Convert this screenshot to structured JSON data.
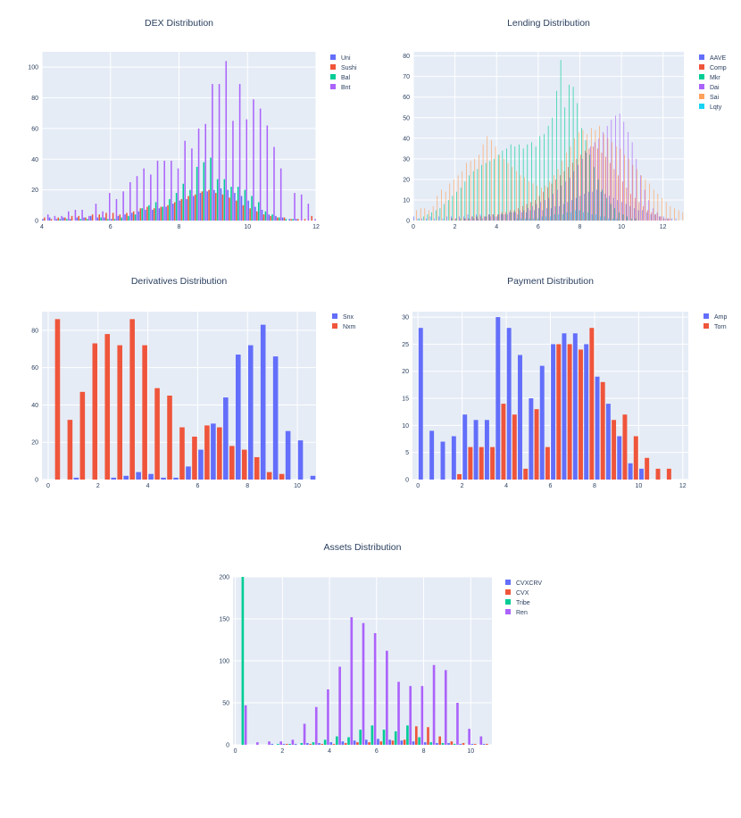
{
  "colors": {
    "plot_bg": "#e5ecf6",
    "grid": "#ffffff",
    "palette": [
      "#636efa",
      "#ef553b",
      "#00cc96",
      "#ab63fa",
      "#ffa15a",
      "#19d3f3"
    ]
  },
  "chart_data": [
    {
      "id": "dex",
      "type": "histogram",
      "title": "DEX Distribution",
      "xlabel": "",
      "ylabel": "",
      "xlim": [
        4,
        12
      ],
      "ylim": [
        0,
        110
      ],
      "xticks": [
        4,
        6,
        8,
        10,
        12
      ],
      "yticks": [
        0,
        20,
        40,
        60,
        80,
        100
      ],
      "grid": true,
      "legend": "top-right",
      "barmode": "group",
      "bins": [
        4.0,
        4.2,
        4.4,
        4.6,
        4.8,
        5.0,
        5.2,
        5.4,
        5.6,
        5.8,
        6.0,
        6.2,
        6.4,
        6.6,
        6.8,
        7.0,
        7.2,
        7.4,
        7.6,
        7.8,
        8.0,
        8.2,
        8.4,
        8.6,
        8.8,
        9.0,
        9.2,
        9.4,
        9.6,
        9.8,
        10.0,
        10.2,
        10.4,
        10.6,
        10.8,
        11.0,
        11.2,
        11.4,
        11.6,
        11.8
      ],
      "bin_width": 0.2,
      "series": [
        {
          "name": "Uni",
          "values": [
            1,
            2,
            1,
            2,
            1,
            2,
            2,
            3,
            2,
            2,
            1,
            3,
            4,
            5,
            6,
            7,
            7,
            8,
            9,
            11,
            13,
            14,
            16,
            18,
            19,
            20,
            21,
            20,
            18,
            16,
            13,
            9,
            7,
            4,
            3,
            2,
            1,
            1,
            0,
            0
          ]
        },
        {
          "name": "Sushi",
          "values": [
            2,
            1,
            2,
            2,
            3,
            3,
            2,
            4,
            4,
            5,
            5,
            4,
            5,
            6,
            8,
            9,
            8,
            9,
            10,
            12,
            14,
            16,
            17,
            19,
            20,
            18,
            17,
            15,
            13,
            10,
            8,
            6,
            4,
            3,
            2,
            2,
            1,
            1,
            1,
            3
          ]
        },
        {
          "name": "Bal",
          "values": [
            0,
            0,
            1,
            1,
            0,
            1,
            1,
            0,
            2,
            1,
            1,
            2,
            3,
            4,
            8,
            10,
            12,
            9,
            14,
            18,
            24,
            20,
            35,
            38,
            41,
            27,
            27,
            22,
            22,
            20,
            16,
            12,
            6,
            4,
            2,
            1,
            1,
            0,
            0,
            0
          ]
        },
        {
          "name": "Bnt",
          "values": [
            4,
            3,
            3,
            6,
            7,
            7,
            3,
            11,
            6,
            18,
            14,
            19,
            25,
            29,
            34,
            30,
            39,
            39,
            39,
            34,
            52,
            47,
            60,
            63,
            89,
            89,
            104,
            65,
            89,
            66,
            79,
            73,
            62,
            48,
            34,
            0,
            18,
            17,
            11,
            1
          ]
        }
      ]
    },
    {
      "id": "lending",
      "type": "histogram",
      "title": "Lending Distribution",
      "xlabel": "",
      "ylabel": "",
      "xlim": [
        0,
        13
      ],
      "ylim": [
        0,
        82
      ],
      "xticks": [
        0,
        2,
        4,
        6,
        8,
        10,
        12
      ],
      "yticks": [
        0,
        10,
        20,
        30,
        40,
        50,
        60,
        70,
        80
      ],
      "grid": true,
      "legend": "top-right",
      "barmode": "group",
      "bins": [
        0.0,
        0.2,
        0.4,
        0.6,
        0.8,
        1.0,
        1.2,
        1.4,
        1.6,
        1.8,
        2.0,
        2.2,
        2.4,
        2.6,
        2.8,
        3.0,
        3.2,
        3.4,
        3.6,
        3.8,
        4.0,
        4.2,
        4.4,
        4.6,
        4.8,
        5.0,
        5.2,
        5.4,
        5.6,
        5.8,
        6.0,
        6.2,
        6.4,
        6.6,
        6.8,
        7.0,
        7.2,
        7.4,
        7.6,
        7.8,
        8.0,
        8.2,
        8.4,
        8.6,
        8.8,
        9.0,
        9.2,
        9.4,
        9.6,
        9.8,
        10.0,
        10.2,
        10.4,
        10.6,
        10.8,
        11.0,
        11.2,
        11.4,
        11.6,
        11.8,
        12.0,
        12.2,
        12.4,
        12.6,
        12.8
      ],
      "bin_width": 0.2,
      "series": [
        {
          "name": "AAVE",
          "values": [
            2,
            1,
            1,
            1,
            2,
            1,
            2,
            1,
            2,
            2,
            1,
            2,
            2,
            3,
            2,
            3,
            3,
            2,
            3,
            3,
            2,
            3,
            3,
            4,
            4,
            3,
            4,
            4,
            5,
            5,
            6,
            5,
            6,
            6,
            7,
            7,
            8,
            9,
            10,
            11,
            12,
            13,
            14,
            14,
            15,
            14,
            13,
            12,
            11,
            10,
            9,
            8,
            7,
            6,
            5,
            5,
            4,
            3,
            3,
            2,
            2,
            1,
            1,
            1,
            0
          ]
        },
        {
          "name": "Comp",
          "values": [
            0,
            0,
            0,
            0,
            0,
            0,
            0,
            0,
            0,
            1,
            1,
            1,
            1,
            1,
            2,
            2,
            2,
            2,
            3,
            3,
            3,
            4,
            4,
            5,
            5,
            6,
            7,
            8,
            9,
            10,
            12,
            14,
            16,
            18,
            20,
            22,
            24,
            26,
            28,
            30,
            32,
            34,
            35,
            36,
            35,
            33,
            31,
            28,
            25,
            22,
            19,
            16,
            13,
            11,
            9,
            7,
            5,
            4,
            3,
            2,
            1,
            1,
            0,
            0,
            0
          ]
        },
        {
          "name": "Mkr",
          "values": [
            0,
            1,
            2,
            3,
            4,
            5,
            6,
            8,
            10,
            12,
            14,
            16,
            19,
            22,
            24,
            25,
            27,
            28,
            29,
            30,
            32,
            34,
            35,
            37,
            36,
            37,
            35,
            37,
            38,
            36,
            41,
            42,
            46,
            50,
            63,
            78,
            55,
            66,
            65,
            57,
            45,
            39,
            32,
            26,
            20,
            15,
            11,
            8,
            6,
            4,
            3,
            2,
            1,
            1,
            0,
            0,
            0,
            0,
            0,
            0,
            0,
            0,
            0,
            0,
            0
          ]
        },
        {
          "name": "Dai",
          "values": [
            0,
            0,
            0,
            0,
            0,
            0,
            0,
            0,
            0,
            0,
            0,
            0,
            1,
            1,
            1,
            1,
            1,
            2,
            2,
            2,
            3,
            3,
            3,
            4,
            4,
            5,
            5,
            6,
            7,
            8,
            9,
            10,
            11,
            13,
            15,
            17,
            19,
            21,
            24,
            27,
            30,
            33,
            36,
            38,
            40,
            43,
            46,
            49,
            51,
            52,
            48,
            43,
            38,
            30,
            22,
            15,
            10,
            6,
            4,
            2,
            1,
            1,
            0,
            0,
            0
          ]
        },
        {
          "name": "Sai",
          "values": [
            5,
            6,
            6,
            5,
            7,
            12,
            15,
            14,
            18,
            20,
            22,
            24,
            28,
            29,
            30,
            32,
            37,
            41,
            39,
            36,
            32,
            30,
            28,
            26,
            24,
            22,
            21,
            19,
            18,
            17,
            16,
            17,
            19,
            22,
            25,
            29,
            33,
            36,
            40,
            43,
            44,
            42,
            45,
            44,
            46,
            42,
            40,
            38,
            36,
            35,
            32,
            30,
            27,
            25,
            22,
            20,
            18,
            15,
            13,
            11,
            9,
            7,
            6,
            5,
            4
          ]
        },
        {
          "name": "Lqty",
          "values": [
            0,
            0,
            0,
            0,
            0,
            0,
            0,
            0,
            0,
            0,
            0,
            0,
            0,
            0,
            0,
            0,
            0,
            0,
            0,
            0,
            0,
            0,
            0,
            0,
            1,
            1,
            1,
            1,
            1,
            1,
            2,
            2,
            2,
            3,
            3,
            3,
            4,
            4,
            5,
            5,
            4,
            4,
            3,
            3,
            2,
            2,
            1,
            1,
            1,
            0,
            0,
            0,
            0,
            0,
            0,
            0,
            0,
            0,
            0,
            0,
            0,
            0,
            0,
            0,
            0
          ]
        }
      ]
    },
    {
      "id": "derivatives",
      "type": "histogram",
      "title": "Derivatives Distribution",
      "xlabel": "",
      "ylabel": "",
      "xlim": [
        -0.25,
        10.75
      ],
      "ylim": [
        0,
        90
      ],
      "xticks": [
        0,
        2,
        4,
        6,
        8,
        10
      ],
      "yticks": [
        0,
        20,
        40,
        60,
        80
      ],
      "grid": true,
      "legend": "top-right",
      "barmode": "group",
      "bins": [
        0.0,
        0.5,
        1.0,
        1.5,
        2.0,
        2.5,
        3.0,
        3.5,
        4.0,
        4.5,
        5.0,
        5.5,
        6.0,
        6.5,
        7.0,
        7.5,
        8.0,
        8.5,
        9.0,
        9.5,
        10.0,
        10.5
      ],
      "bin_width": 0.5,
      "series": [
        {
          "name": "Snx",
          "values": [
            0,
            0,
            1,
            0,
            0,
            1,
            2,
            4,
            3,
            1,
            1,
            7,
            16,
            30,
            44,
            67,
            72,
            83,
            66,
            26,
            21,
            2
          ]
        },
        {
          "name": "Nxm",
          "values": [
            86,
            32,
            47,
            73,
            78,
            72,
            86,
            72,
            49,
            45,
            28,
            23,
            29,
            28,
            18,
            16,
            12,
            4,
            3,
            0,
            0,
            0
          ]
        }
      ]
    },
    {
      "id": "payment",
      "type": "histogram",
      "title": "Payment Distribution",
      "xlabel": "",
      "ylabel": "",
      "xlim": [
        -0.25,
        12.25
      ],
      "ylim": [
        0,
        31
      ],
      "xticks": [
        0,
        2,
        4,
        6,
        8,
        10,
        12
      ],
      "yticks": [
        0,
        5,
        10,
        15,
        20,
        25,
        30
      ],
      "grid": true,
      "legend": "top-right",
      "barmode": "group",
      "bins": [
        0.0,
        0.5,
        1.0,
        1.5,
        2.0,
        2.5,
        3.0,
        3.5,
        4.0,
        4.5,
        5.0,
        5.5,
        6.0,
        6.5,
        7.0,
        7.5,
        8.0,
        8.5,
        9.0,
        9.5,
        10.0,
        10.5,
        11.0,
        11.5,
        12.0
      ],
      "bin_width": 0.5,
      "series": [
        {
          "name": "Amp",
          "values": [
            28,
            9,
            7,
            8,
            12,
            11,
            11,
            30,
            28,
            23,
            15,
            21,
            25,
            27,
            27,
            25,
            19,
            14,
            8,
            3,
            2,
            0,
            0,
            0,
            0
          ]
        },
        {
          "name": "Torn",
          "values": [
            0,
            0,
            0,
            1,
            6,
            6,
            6,
            14,
            12,
            2,
            13,
            6,
            25,
            25,
            24,
            28,
            18,
            11,
            12,
            8,
            4,
            2,
            2,
            0,
            1
          ]
        }
      ]
    },
    {
      "id": "assets",
      "type": "histogram",
      "title": "Assets Distribution",
      "xlabel": "",
      "ylabel": "",
      "xlim": [
        -0.1,
        10.9
      ],
      "ylim": [
        0,
        200
      ],
      "xticks": [
        0,
        2,
        4,
        6,
        8,
        10
      ],
      "yticks": [
        0,
        50,
        100,
        150,
        200
      ],
      "grid": true,
      "legend": "top-right",
      "barmode": "group",
      "bins": [
        0.0,
        0.5,
        1.0,
        1.5,
        2.0,
        2.5,
        3.0,
        3.5,
        4.0,
        4.5,
        5.0,
        5.5,
        6.0,
        6.5,
        7.0,
        7.5,
        8.0,
        8.5,
        9.0,
        9.5,
        10.0,
        10.5
      ],
      "bin_width": 0.5,
      "series": [
        {
          "name": "CVXCRV",
          "values": [
            0,
            0,
            0,
            1,
            1,
            1,
            2,
            2,
            3,
            4,
            5,
            6,
            7,
            6,
            5,
            4,
            3,
            2,
            2,
            1,
            1,
            1
          ]
        },
        {
          "name": "CVX",
          "values": [
            0,
            0,
            0,
            0,
            1,
            0,
            1,
            1,
            1,
            2,
            3,
            3,
            4,
            5,
            6,
            22,
            21,
            10,
            4,
            2,
            1,
            1
          ]
        },
        {
          "name": "Tribe",
          "values": [
            200,
            0,
            0,
            1,
            1,
            2,
            3,
            6,
            10,
            9,
            18,
            23,
            18,
            16,
            23,
            9,
            3,
            2,
            1,
            0,
            0,
            0
          ]
        },
        {
          "name": "Ren",
          "values": [
            47,
            3,
            4,
            4,
            6,
            25,
            45,
            66,
            93,
            152,
            145,
            133,
            112,
            75,
            70,
            70,
            95,
            89,
            50,
            19,
            10,
            0
          ]
        }
      ]
    }
  ]
}
